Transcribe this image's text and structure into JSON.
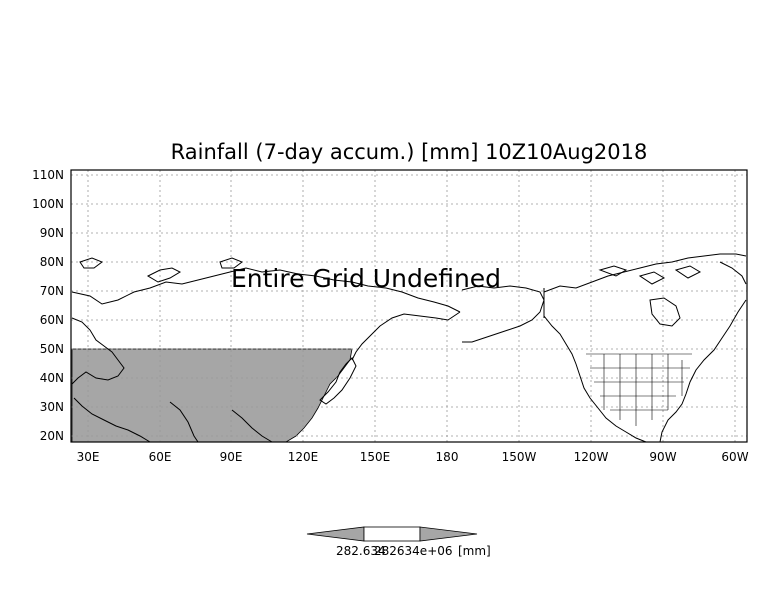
{
  "title": "Rainfall (7-day accum.) [mm] 10Z10Aug2018",
  "overlay_text": "Entire Grid Undefined",
  "lat_labels": [
    "110N",
    "100N",
    "90N",
    "80N",
    "70N",
    "60N",
    "50N",
    "40N",
    "30N",
    "20N"
  ],
  "lon_labels": [
    "30E",
    "60E",
    "90E",
    "120E",
    "150E",
    "180",
    "150W",
    "120W",
    "90W",
    "60W"
  ],
  "colorbar": {
    "low_label": "282.634",
    "high_label": "282634e+06",
    "unit_label": "[mm]"
  },
  "colors": {
    "land_fill": "#a6a6a6",
    "grid": "#999999",
    "coastline": "#000000"
  }
}
